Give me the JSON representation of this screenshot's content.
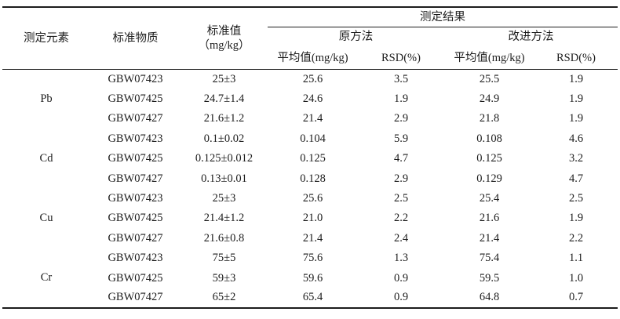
{
  "table": {
    "header": {
      "element": "测定元素",
      "material": "标准物质",
      "standard_line1": "标准值",
      "standard_line2": "（mg/kg）",
      "results_group": "测定结果",
      "original_method": "原方法",
      "improved_method": "改进方法",
      "mean_label": "平均值(mg/kg)",
      "rsd_label": "RSD(%)"
    },
    "colors": {
      "text": "#1c1c1c",
      "rule": "#1c1c1c",
      "background": "#ffffff"
    },
    "groups": [
      {
        "element": "Pb",
        "rows": [
          {
            "material": "GBW07423",
            "standard": "25±3",
            "orig_mean": "25.6",
            "orig_rsd": "3.5",
            "imp_mean": "25.5",
            "imp_rsd": "1.9"
          },
          {
            "material": "GBW07425",
            "standard": "24.7±1.4",
            "orig_mean": "24.6",
            "orig_rsd": "1.9",
            "imp_mean": "24.9",
            "imp_rsd": "1.9"
          },
          {
            "material": "GBW07427",
            "standard": "21.6±1.2",
            "orig_mean": "21.4",
            "orig_rsd": "2.9",
            "imp_mean": "21.8",
            "imp_rsd": "1.9"
          }
        ]
      },
      {
        "element": "Cd",
        "rows": [
          {
            "material": "GBW07423",
            "standard": "0.1±0.02",
            "orig_mean": "0.104",
            "orig_rsd": "5.9",
            "imp_mean": "0.108",
            "imp_rsd": "4.6"
          },
          {
            "material": "GBW07425",
            "standard": "0.125±0.012",
            "orig_mean": "0.125",
            "orig_rsd": "4.7",
            "imp_mean": "0.125",
            "imp_rsd": "3.2"
          },
          {
            "material": "GBW07427",
            "standard": "0.13±0.01",
            "orig_mean": "0.128",
            "orig_rsd": "2.9",
            "imp_mean": "0.129",
            "imp_rsd": "4.7"
          }
        ]
      },
      {
        "element": "Cu",
        "rows": [
          {
            "material": "GBW07423",
            "standard": "25±3",
            "orig_mean": "25.6",
            "orig_rsd": "2.5",
            "imp_mean": "25.4",
            "imp_rsd": "2.5"
          },
          {
            "material": "GBW07425",
            "standard": "21.4±1.2",
            "orig_mean": "21.0",
            "orig_rsd": "2.2",
            "imp_mean": "21.6",
            "imp_rsd": "1.9"
          },
          {
            "material": "GBW07427",
            "standard": "21.6±0.8",
            "orig_mean": "21.4",
            "orig_rsd": "2.4",
            "imp_mean": "21.4",
            "imp_rsd": "2.2"
          }
        ]
      },
      {
        "element": "Cr",
        "rows": [
          {
            "material": "GBW07423",
            "standard": "75±5",
            "orig_mean": "75.6",
            "orig_rsd": "1.3",
            "imp_mean": "75.4",
            "imp_rsd": "1.1"
          },
          {
            "material": "GBW07425",
            "standard": "59±3",
            "orig_mean": "59.6",
            "orig_rsd": "0.9",
            "imp_mean": "59.5",
            "imp_rsd": "1.0"
          },
          {
            "material": "GBW07427",
            "standard": "65±2",
            "orig_mean": "65.4",
            "orig_rsd": "0.9",
            "imp_mean": "64.8",
            "imp_rsd": "0.7"
          }
        ]
      }
    ]
  }
}
